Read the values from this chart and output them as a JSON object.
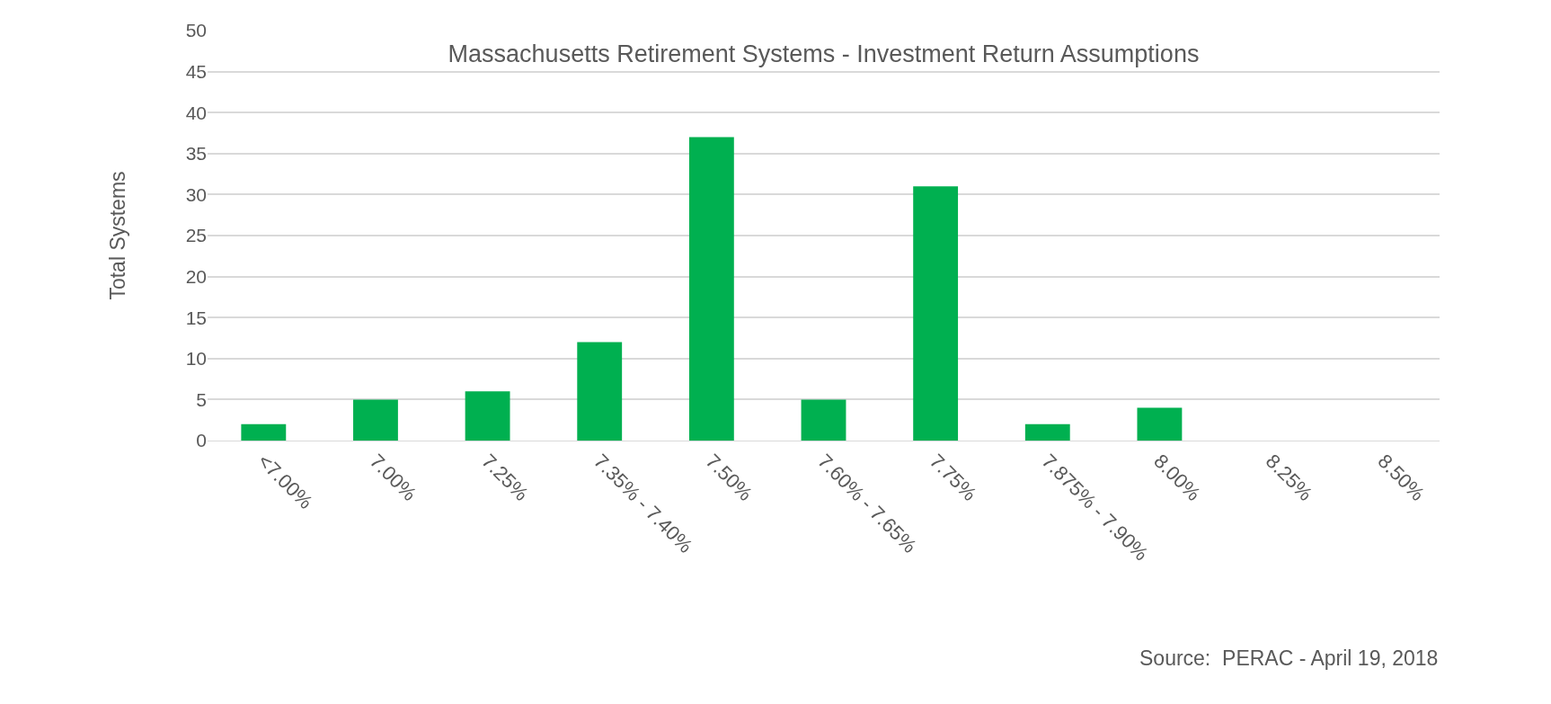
{
  "chart_data": {
    "type": "bar",
    "title": "Massachusetts Retirement Systems - Investment Return Assumptions",
    "ylabel": "Total Systems",
    "categories": [
      "<7.00%",
      "7.00%",
      "7.25%",
      "7.35% - 7.40%",
      "7.50%",
      "7.60% - 7.65%",
      "7.75%",
      "7.875% - 7.90%",
      "8.00%",
      "8.25%",
      "8.50%"
    ],
    "values": [
      2,
      5,
      6,
      12,
      37,
      5,
      31,
      2,
      4,
      0,
      0
    ],
    "color": "#00b050",
    "ylim": [
      0,
      50
    ],
    "yticks": [
      0,
      5,
      10,
      15,
      20,
      25,
      30,
      35,
      40,
      45,
      50
    ],
    "grid": "y",
    "legend": false,
    "annotations": [
      "Source:  PERAC - April 19, 2018"
    ]
  }
}
